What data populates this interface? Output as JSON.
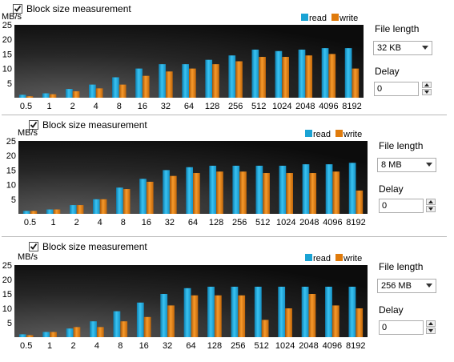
{
  "colors": {
    "read": "#1aa3d4",
    "write": "#e07b0c",
    "plot_bg": "#151515"
  },
  "panels": [
    {
      "checkbox_label": "Block size measurement",
      "checked": true,
      "file_length_label": "File length",
      "file_length_value": "32 KB",
      "delay_label": "Delay",
      "delay_value": "0"
    },
    {
      "checkbox_label": "Block size measurement",
      "checked": true,
      "file_length_label": "File length",
      "file_length_value": "8 MB",
      "delay_label": "Delay",
      "delay_value": "0"
    },
    {
      "checkbox_label": "Block size measurement",
      "checked": true,
      "file_length_label": "File length",
      "file_length_value": "256 MB",
      "delay_label": "Delay",
      "delay_value": "0"
    }
  ],
  "chart_data": [
    {
      "type": "bar",
      "ylabel": "MB/s",
      "ylim": [
        0,
        25
      ],
      "yticks": [
        "25",
        "20",
        "15",
        "10",
        "5"
      ],
      "categories": [
        "0.5",
        "1",
        "2",
        "4",
        "8",
        "16",
        "32",
        "64",
        "128",
        "256",
        "512",
        "1024",
        "2048",
        "4096",
        "8192"
      ],
      "legend": "top-right",
      "series": [
        {
          "name": "read",
          "values": [
            1,
            1.5,
            3,
            4.5,
            7,
            10,
            11.5,
            11.5,
            13,
            14.5,
            16.5,
            16,
            16.5,
            17,
            17
          ]
        },
        {
          "name": "write",
          "values": [
            0.5,
            1.2,
            2.2,
            3.2,
            4.5,
            7.5,
            9,
            10,
            11.5,
            12.5,
            14,
            14,
            14.5,
            15,
            10
          ]
        }
      ]
    },
    {
      "type": "bar",
      "ylabel": "MB/s",
      "ylim": [
        0,
        25
      ],
      "yticks": [
        "25",
        "20",
        "15",
        "10",
        "5"
      ],
      "categories": [
        "0.5",
        "1",
        "2",
        "4",
        "8",
        "16",
        "32",
        "64",
        "128",
        "256",
        "512",
        "1024",
        "2048",
        "4096",
        "8192"
      ],
      "legend": "top-right",
      "series": [
        {
          "name": "read",
          "values": [
            1,
            1.5,
            3,
            5,
            9,
            12,
            15,
            16,
            16.5,
            16.5,
            16.5,
            16.5,
            17,
            17,
            17.5
          ]
        },
        {
          "name": "write",
          "values": [
            1,
            1.5,
            3,
            5,
            8.5,
            11,
            13,
            14,
            14.5,
            14.5,
            14,
            14,
            14,
            14.5,
            8
          ]
        }
      ]
    },
    {
      "type": "bar",
      "ylabel": "MB/s",
      "ylim": [
        0,
        25
      ],
      "yticks": [
        "25",
        "20",
        "15",
        "10",
        "5"
      ],
      "categories": [
        "0.5",
        "1",
        "2",
        "4",
        "8",
        "16",
        "32",
        "64",
        "128",
        "256",
        "512",
        "1024",
        "2048",
        "4096",
        "8192"
      ],
      "legend": "top-right",
      "series": [
        {
          "name": "read",
          "values": [
            1,
            1.8,
            3,
            5.5,
            9,
            12,
            15,
            17,
            17.5,
            17.5,
            17.5,
            17.5,
            17.5,
            17.5,
            17.5
          ]
        },
        {
          "name": "write",
          "values": [
            0.7,
            1.8,
            3.5,
            3.5,
            5.5,
            7,
            11,
            14.5,
            14.5,
            14.5,
            6,
            10,
            15,
            11,
            10
          ]
        }
      ]
    }
  ]
}
